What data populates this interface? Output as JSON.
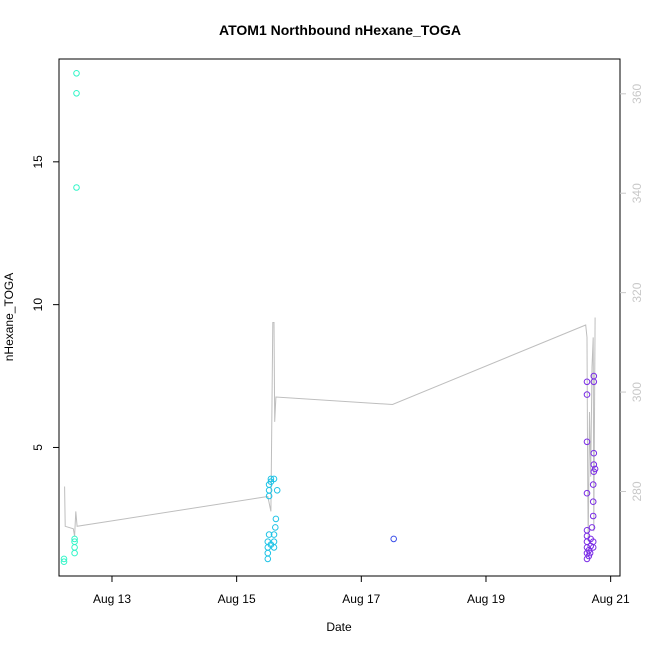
{
  "chart_data": {
    "type": "scatter",
    "title": "ATOM1 Northbound nHexane_TOGA",
    "xlabel": "Date",
    "ylabel": "nHexane_TOGA",
    "x_ticks": [
      "Aug 13",
      "Aug 15",
      "Aug 17",
      "Aug 19",
      "Aug 21"
    ],
    "y_ticks": [
      "5",
      "10",
      "15"
    ],
    "y2_ticks": [
      "280",
      "300",
      "320",
      "340",
      "360"
    ],
    "x_range_days": [
      12.15,
      21.15
    ],
    "y_range": [
      0.5,
      18.6
    ],
    "y2_range": [
      263,
      367
    ],
    "x_tick_days": [
      13,
      15,
      17,
      19,
      21
    ],
    "y_tick_values": [
      5,
      10,
      15
    ],
    "y2_tick_values": [
      280,
      300,
      320,
      340,
      360
    ],
    "colors": {
      "axis": "#000000",
      "secondary_axis": "#c8c8c8",
      "line": "#bebebe"
    },
    "points": [
      {
        "x": 12.23,
        "y": 1.0,
        "color": "#33f5c8"
      },
      {
        "x": 12.23,
        "y": 1.1,
        "color": "#33f5c8"
      },
      {
        "x": 12.4,
        "y": 1.3,
        "color": "#33f5c8"
      },
      {
        "x": 12.4,
        "y": 1.5,
        "color": "#33f5c8"
      },
      {
        "x": 12.4,
        "y": 1.7,
        "color": "#33f5c8"
      },
      {
        "x": 12.4,
        "y": 1.8,
        "color": "#33f5c8"
      },
      {
        "x": 12.43,
        "y": 14.1,
        "color": "#33f5c8"
      },
      {
        "x": 12.43,
        "y": 17.4,
        "color": "#33f5c8"
      },
      {
        "x": 12.43,
        "y": 18.1,
        "color": "#33f5c8"
      },
      {
        "x": 15.5,
        "y": 1.1,
        "color": "#1ec3e6"
      },
      {
        "x": 15.5,
        "y": 1.3,
        "color": "#1ec3e6"
      },
      {
        "x": 15.5,
        "y": 1.5,
        "color": "#1ec3e6"
      },
      {
        "x": 15.5,
        "y": 1.7,
        "color": "#1ec3e6"
      },
      {
        "x": 15.55,
        "y": 1.6,
        "color": "#1ec3e6"
      },
      {
        "x": 15.52,
        "y": 1.95,
        "color": "#1ec3e6"
      },
      {
        "x": 15.6,
        "y": 1.5,
        "color": "#1ec3e6"
      },
      {
        "x": 15.6,
        "y": 1.7,
        "color": "#1ec3e6"
      },
      {
        "x": 15.6,
        "y": 1.95,
        "color": "#1ec3e6"
      },
      {
        "x": 15.62,
        "y": 2.2,
        "color": "#1ec3e6"
      },
      {
        "x": 15.63,
        "y": 2.5,
        "color": "#1ec3e6"
      },
      {
        "x": 15.52,
        "y": 3.3,
        "color": "#1ec3e6"
      },
      {
        "x": 15.52,
        "y": 3.5,
        "color": "#1ec3e6"
      },
      {
        "x": 15.52,
        "y": 3.7,
        "color": "#1ec3e6"
      },
      {
        "x": 15.55,
        "y": 3.8,
        "color": "#1ec3e6"
      },
      {
        "x": 15.55,
        "y": 3.9,
        "color": "#1ec3e6"
      },
      {
        "x": 15.6,
        "y": 3.9,
        "color": "#1ec3e6"
      },
      {
        "x": 15.65,
        "y": 3.5,
        "color": "#1ec3e6"
      },
      {
        "x": 17.52,
        "y": 1.8,
        "color": "#3a4ee8"
      },
      {
        "x": 20.62,
        "y": 1.1,
        "color": "#7a2ce6"
      },
      {
        "x": 20.62,
        "y": 1.3,
        "color": "#7a2ce6"
      },
      {
        "x": 20.62,
        "y": 1.5,
        "color": "#7a2ce6"
      },
      {
        "x": 20.62,
        "y": 1.7,
        "color": "#7a2ce6"
      },
      {
        "x": 20.62,
        "y": 1.9,
        "color": "#7a2ce6"
      },
      {
        "x": 20.62,
        "y": 2.1,
        "color": "#7a2ce6"
      },
      {
        "x": 20.65,
        "y": 1.2,
        "color": "#7a2ce6"
      },
      {
        "x": 20.65,
        "y": 1.4,
        "color": "#7a2ce6"
      },
      {
        "x": 20.67,
        "y": 1.3,
        "color": "#7a2ce6"
      },
      {
        "x": 20.68,
        "y": 1.55,
        "color": "#7a2ce6"
      },
      {
        "x": 20.68,
        "y": 1.8,
        "color": "#7a2ce6"
      },
      {
        "x": 20.7,
        "y": 2.2,
        "color": "#7a2ce6"
      },
      {
        "x": 20.72,
        "y": 1.5,
        "color": "#7a2ce6"
      },
      {
        "x": 20.72,
        "y": 1.7,
        "color": "#7a2ce6"
      },
      {
        "x": 20.62,
        "y": 3.4,
        "color": "#7a2ce6"
      },
      {
        "x": 20.62,
        "y": 5.2,
        "color": "#7a2ce6"
      },
      {
        "x": 20.62,
        "y": 6.85,
        "color": "#7a2ce6"
      },
      {
        "x": 20.62,
        "y": 7.3,
        "color": "#7a2ce6"
      },
      {
        "x": 20.72,
        "y": 2.6,
        "color": "#7a2ce6"
      },
      {
        "x": 20.72,
        "y": 3.1,
        "color": "#7a2ce6"
      },
      {
        "x": 20.72,
        "y": 3.7,
        "color": "#7a2ce6"
      },
      {
        "x": 20.73,
        "y": 4.15,
        "color": "#7a2ce6"
      },
      {
        "x": 20.73,
        "y": 4.4,
        "color": "#7a2ce6"
      },
      {
        "x": 20.73,
        "y": 4.8,
        "color": "#7a2ce6"
      },
      {
        "x": 20.75,
        "y": 4.25,
        "color": "#7a2ce6"
      },
      {
        "x": 20.73,
        "y": 7.3,
        "color": "#7a2ce6"
      },
      {
        "x": 20.73,
        "y": 7.5,
        "color": "#7a2ce6"
      }
    ],
    "line_series": [
      {
        "x": 12.24,
        "y2": 281
      },
      {
        "x": 12.25,
        "y2": 273
      },
      {
        "x": 12.38,
        "y2": 272.5
      },
      {
        "x": 12.4,
        "y2": 271
      },
      {
        "x": 12.42,
        "y2": 276
      },
      {
        "x": 12.44,
        "y2": 273
      },
      {
        "x": 15.5,
        "y2": 279
      },
      {
        "x": 15.55,
        "y2": 276
      },
      {
        "x": 15.58,
        "y2": 314
      },
      {
        "x": 15.6,
        "y2": 314
      },
      {
        "x": 15.61,
        "y2": 294
      },
      {
        "x": 15.63,
        "y2": 299
      },
      {
        "x": 17.5,
        "y2": 297.5
      },
      {
        "x": 20.6,
        "y2": 313.5
      },
      {
        "x": 20.62,
        "y2": 311
      },
      {
        "x": 20.63,
        "y2": 285
      },
      {
        "x": 20.64,
        "y2": 270
      },
      {
        "x": 20.66,
        "y2": 296
      },
      {
        "x": 20.68,
        "y2": 283
      },
      {
        "x": 20.7,
        "y2": 305
      },
      {
        "x": 20.72,
        "y2": 311
      },
      {
        "x": 20.73,
        "y2": 272
      },
      {
        "x": 20.75,
        "y2": 315
      }
    ]
  }
}
